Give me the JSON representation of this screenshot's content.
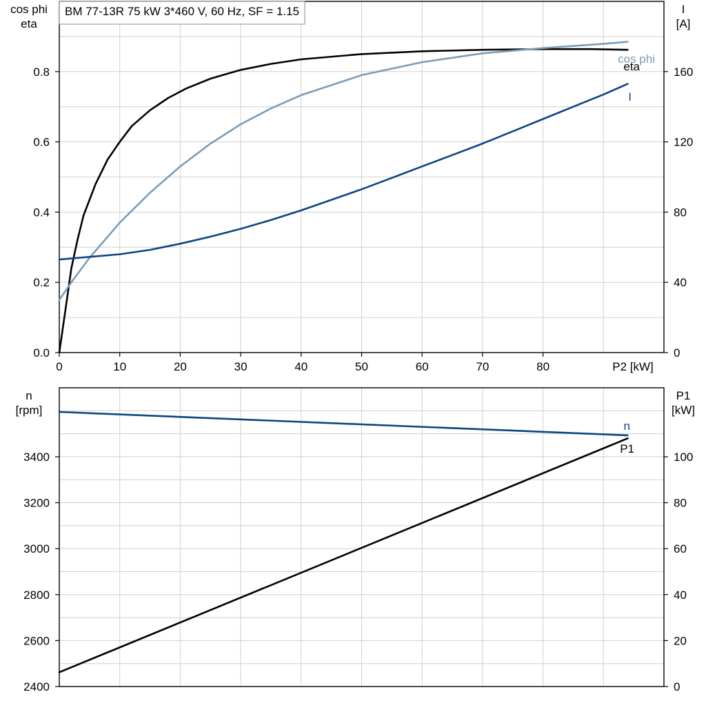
{
  "chart_data": [
    {
      "type": "line",
      "title": "BM 77-13R   75 kW   3*460 V, 60 Hz, SF = 1.15",
      "xlabel": "P2 [kW]",
      "ylabel_left": [
        "cos phi",
        "eta"
      ],
      "ylabel_right": [
        "I",
        "[A]"
      ],
      "xlim": [
        0,
        100
      ],
      "x_ticks": [
        0,
        10,
        20,
        30,
        40,
        50,
        60,
        70,
        80
      ],
      "ylim_left": [
        0.0,
        1.0
      ],
      "y_ticks_left": [
        "0.0",
        "0.2",
        "0.4",
        "0.6",
        "0.8"
      ],
      "ylim_right": [
        0,
        200
      ],
      "y_ticks_right": [
        "0",
        "40",
        "80",
        "120",
        "160"
      ],
      "grid": true,
      "series": [
        {
          "name": "eta",
          "axis": "left",
          "color": "#000000",
          "x": [
            0,
            1,
            2,
            3,
            4,
            6,
            8,
            10,
            12,
            15,
            18,
            21,
            25,
            30,
            35,
            40,
            50,
            60,
            70,
            80,
            88,
            94
          ],
          "y": [
            0.0,
            0.12,
            0.24,
            0.32,
            0.39,
            0.48,
            0.55,
            0.6,
            0.645,
            0.69,
            0.725,
            0.752,
            0.78,
            0.805,
            0.822,
            0.835,
            0.85,
            0.858,
            0.862,
            0.864,
            0.864,
            0.862
          ]
        },
        {
          "name": "cos phi",
          "axis": "left",
          "color": "#7a9cb9",
          "x": [
            0,
            2,
            5,
            10,
            15,
            20,
            25,
            30,
            35,
            40,
            50,
            60,
            70,
            80,
            90,
            94
          ],
          "y": [
            0.15,
            0.2,
            0.27,
            0.37,
            0.455,
            0.53,
            0.595,
            0.65,
            0.695,
            0.733,
            0.79,
            0.827,
            0.852,
            0.867,
            0.879,
            0.885
          ]
        },
        {
          "name": "I",
          "axis": "right",
          "color": "#0b4480",
          "x": [
            0,
            5,
            10,
            15,
            20,
            25,
            30,
            35,
            40,
            45,
            50,
            55,
            60,
            65,
            70,
            75,
            80,
            85,
            90,
            94
          ],
          "y": [
            53,
            54.5,
            56,
            58.5,
            62,
            66,
            70.5,
            75.5,
            81,
            87,
            93,
            99.5,
            106,
            112.5,
            119,
            126,
            133,
            140,
            147,
            153
          ]
        }
      ]
    },
    {
      "type": "line",
      "xlabel": "",
      "ylabel_left": [
        "n",
        "[rpm]"
      ],
      "ylabel_right": [
        "P1",
        "[kW]"
      ],
      "xlim": [
        0,
        100
      ],
      "ylim_left": [
        2400,
        3700
      ],
      "y_ticks_left": [
        "2400",
        "2600",
        "2800",
        "3000",
        "3200",
        "3400"
      ],
      "ylim_right": [
        0,
        130
      ],
      "y_ticks_right": [
        "0",
        "20",
        "40",
        "60",
        "80",
        "100"
      ],
      "grid": true,
      "series": [
        {
          "name": "n",
          "axis": "left",
          "color": "#0b4480",
          "x": [
            0,
            94
          ],
          "y": [
            3595,
            3493
          ]
        },
        {
          "name": "P1",
          "axis": "right",
          "color": "#000000",
          "x": [
            0,
            94
          ],
          "y": [
            6.2,
            108
          ]
        }
      ]
    }
  ]
}
